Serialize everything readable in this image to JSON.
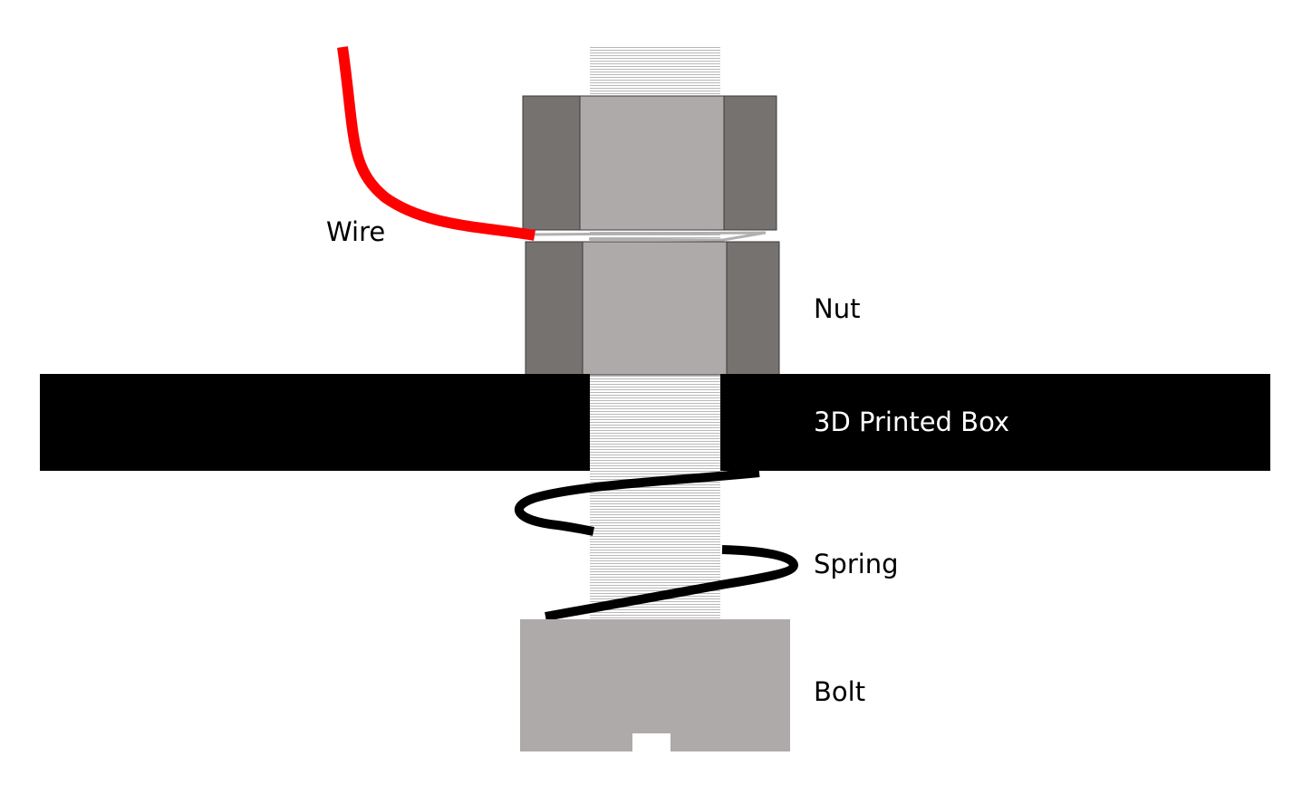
{
  "labels": {
    "wire": "Wire",
    "nut": "Nut",
    "box": "3D Printed Box",
    "spring": "Spring",
    "bolt": "Bolt"
  },
  "colors": {
    "background": "#ffffff",
    "box": "#000000",
    "box_label": "#ffffff",
    "text": "#000000",
    "wire": "#ff0000",
    "nut_side": "#767270",
    "nut_face": "#aeaaa9",
    "bolt_head": "#aeaaa9",
    "thread_line": "#b8b8b8",
    "spring": "#000000"
  }
}
